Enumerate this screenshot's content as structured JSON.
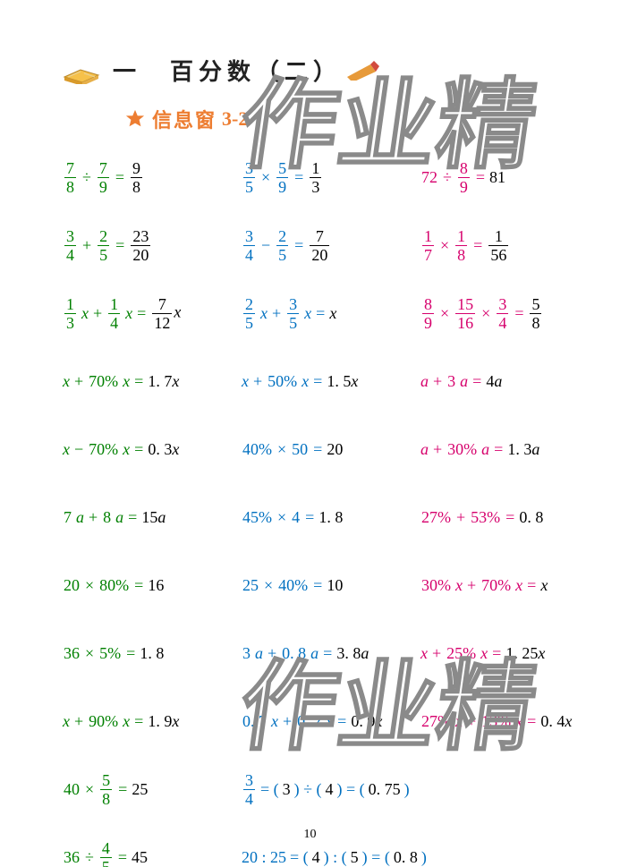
{
  "colors": {
    "green": "#008000",
    "blue": "#0070c0",
    "pink": "#d6006c",
    "orange": "#ed7d31",
    "answer": "#000000",
    "title": "#222222",
    "watermark_stroke": "#8a8a8a"
  },
  "title": "一　百分数（二）",
  "subtitle_label": "信息窗",
  "subtitle_num": "3-2",
  "page_number": "10",
  "watermark_text_top": "作业精",
  "watermark_text_bottom": "作业精",
  "rows": [
    [
      {
        "c": "green",
        "parts": [
          {
            "t": "frac",
            "n": "7",
            "d": "8"
          },
          {
            "t": "op",
            "v": "÷"
          },
          {
            "t": "frac",
            "n": "7",
            "d": "9"
          },
          {
            "t": "op",
            "v": "="
          }
        ],
        "ans_frac": {
          "n": "9",
          "d": "8"
        }
      },
      {
        "c": "blue",
        "parts": [
          {
            "t": "frac",
            "n": "3",
            "d": "5"
          },
          {
            "t": "op",
            "v": "×"
          },
          {
            "t": "frac",
            "n": "5",
            "d": "9"
          },
          {
            "t": "op",
            "v": "="
          }
        ],
        "ans_frac": {
          "n": "1",
          "d": "3"
        }
      },
      {
        "c": "pink",
        "parts": [
          {
            "t": "plain",
            "v": "72"
          },
          {
            "t": "op",
            "v": " ÷ "
          },
          {
            "t": "frac",
            "n": "8",
            "d": "9"
          },
          {
            "t": "op",
            "v": " = "
          }
        ],
        "ans": "81"
      }
    ],
    [
      {
        "c": "green",
        "parts": [
          {
            "t": "frac",
            "n": "3",
            "d": "4"
          },
          {
            "t": "op",
            "v": "+"
          },
          {
            "t": "frac",
            "n": "2",
            "d": "5"
          },
          {
            "t": "op",
            "v": "="
          }
        ],
        "ans_frac": {
          "n": "23",
          "d": "20"
        }
      },
      {
        "c": "blue",
        "parts": [
          {
            "t": "frac",
            "n": "3",
            "d": "4"
          },
          {
            "t": "op",
            "v": "−"
          },
          {
            "t": "frac",
            "n": "2",
            "d": "5"
          },
          {
            "t": "op",
            "v": "="
          }
        ],
        "ans_frac": {
          "n": "7",
          "d": "20"
        }
      },
      {
        "c": "pink",
        "parts": [
          {
            "t": "frac",
            "n": "1",
            "d": "7"
          },
          {
            "t": "op",
            "v": "×"
          },
          {
            "t": "frac",
            "n": "1",
            "d": "8"
          },
          {
            "t": "op",
            "v": "="
          }
        ],
        "ans_frac": {
          "n": "1",
          "d": "56"
        }
      }
    ],
    [
      {
        "c": "green",
        "parts": [
          {
            "t": "frac",
            "n": "1",
            "d": "3"
          },
          {
            "t": "ital",
            "v": "x"
          },
          {
            "t": "op",
            "v": " + "
          },
          {
            "t": "frac",
            "n": "1",
            "d": "4"
          },
          {
            "t": "ital",
            "v": "x"
          },
          {
            "t": "op",
            "v": " = "
          }
        ],
        "ans_parts": [
          {
            "t": "frac",
            "n": "7",
            "d": "12"
          },
          {
            "t": "ital",
            "v": "x"
          }
        ]
      },
      {
        "c": "blue",
        "parts": [
          {
            "t": "frac",
            "n": "2",
            "d": "5"
          },
          {
            "t": "ital",
            "v": "x"
          },
          {
            "t": "op",
            "v": " + "
          },
          {
            "t": "frac",
            "n": "3",
            "d": "5"
          },
          {
            "t": "ital",
            "v": "x"
          },
          {
            "t": "op",
            "v": " = "
          }
        ],
        "ans_parts": [
          {
            "t": "ital",
            "v": "x"
          }
        ]
      },
      {
        "c": "pink",
        "parts": [
          {
            "t": "frac",
            "n": "8",
            "d": "9"
          },
          {
            "t": "op",
            "v": "×"
          },
          {
            "t": "frac",
            "n": "15",
            "d": "16"
          },
          {
            "t": "op",
            "v": "×"
          },
          {
            "t": "frac",
            "n": "3",
            "d": "4"
          },
          {
            "t": "op",
            "v": "="
          }
        ],
        "ans_frac": {
          "n": "5",
          "d": "8"
        }
      }
    ],
    [
      {
        "c": "green",
        "parts": [
          {
            "t": "ital",
            "v": "x"
          },
          {
            "t": "op",
            "v": " + "
          },
          {
            "t": "plain",
            "v": "70%"
          },
          {
            "t": "ital",
            "v": " x"
          },
          {
            "t": "op",
            "v": " = "
          }
        ],
        "ans_parts": [
          {
            "t": "plain",
            "v": "1. 7"
          },
          {
            "t": "ital",
            "v": "x"
          }
        ]
      },
      {
        "c": "blue",
        "parts": [
          {
            "t": "ital",
            "v": "x"
          },
          {
            "t": "op",
            "v": " + "
          },
          {
            "t": "plain",
            "v": "50%"
          },
          {
            "t": "ital",
            "v": " x"
          },
          {
            "t": "op",
            "v": " = "
          }
        ],
        "ans_parts": [
          {
            "t": "plain",
            "v": "1. 5"
          },
          {
            "t": "ital",
            "v": "x"
          }
        ]
      },
      {
        "c": "pink",
        "parts": [
          {
            "t": "ital",
            "v": "a"
          },
          {
            "t": "op",
            "v": " + "
          },
          {
            "t": "plain",
            "v": "3"
          },
          {
            "t": "ital",
            "v": "a"
          },
          {
            "t": "op",
            "v": " = "
          }
        ],
        "ans_parts": [
          {
            "t": "plain",
            "v": "4"
          },
          {
            "t": "ital",
            "v": "a"
          }
        ]
      }
    ],
    [
      {
        "c": "green",
        "parts": [
          {
            "t": "ital",
            "v": "x"
          },
          {
            "t": "op",
            "v": " − "
          },
          {
            "t": "plain",
            "v": "70%"
          },
          {
            "t": "ital",
            "v": " x"
          },
          {
            "t": "op",
            "v": " = "
          }
        ],
        "ans_parts": [
          {
            "t": "plain",
            "v": "0. 3"
          },
          {
            "t": "ital",
            "v": "x"
          }
        ]
      },
      {
        "c": "blue",
        "parts": [
          {
            "t": "plain",
            "v": "40%"
          },
          {
            "t": "op",
            "v": " × "
          },
          {
            "t": "plain",
            "v": "50"
          },
          {
            "t": "op",
            "v": " = "
          }
        ],
        "ans": "20"
      },
      {
        "c": "pink",
        "parts": [
          {
            "t": "ital",
            "v": "a"
          },
          {
            "t": "op",
            "v": " + "
          },
          {
            "t": "plain",
            "v": "30%"
          },
          {
            "t": "ital",
            "v": " a"
          },
          {
            "t": "op",
            "v": " = "
          }
        ],
        "ans_parts": [
          {
            "t": "plain",
            "v": "1. 3"
          },
          {
            "t": "ital",
            "v": "a"
          }
        ]
      }
    ],
    [
      {
        "c": "green",
        "parts": [
          {
            "t": "plain",
            "v": "7"
          },
          {
            "t": "ital",
            "v": "a"
          },
          {
            "t": "op",
            "v": " + "
          },
          {
            "t": "plain",
            "v": "8"
          },
          {
            "t": "ital",
            "v": "a"
          },
          {
            "t": "op",
            "v": " = "
          }
        ],
        "ans_parts": [
          {
            "t": "plain",
            "v": "15"
          },
          {
            "t": "ital",
            "v": "a"
          }
        ]
      },
      {
        "c": "blue",
        "parts": [
          {
            "t": "plain",
            "v": "45%"
          },
          {
            "t": "op",
            "v": " × "
          },
          {
            "t": "plain",
            "v": "4"
          },
          {
            "t": "op",
            "v": " = "
          }
        ],
        "ans": "1. 8"
      },
      {
        "c": "pink",
        "parts": [
          {
            "t": "plain",
            "v": "27%"
          },
          {
            "t": "op",
            "v": " + "
          },
          {
            "t": "plain",
            "v": "53%"
          },
          {
            "t": "op",
            "v": " = "
          }
        ],
        "ans": "0. 8"
      }
    ],
    [
      {
        "c": "green",
        "parts": [
          {
            "t": "plain",
            "v": "20"
          },
          {
            "t": "op",
            "v": " × "
          },
          {
            "t": "plain",
            "v": "80%"
          },
          {
            "t": "op",
            "v": " = "
          }
        ],
        "ans": "16"
      },
      {
        "c": "blue",
        "parts": [
          {
            "t": "plain",
            "v": "25"
          },
          {
            "t": "op",
            "v": " × "
          },
          {
            "t": "plain",
            "v": "40%"
          },
          {
            "t": "op",
            "v": " = "
          }
        ],
        "ans": "10"
      },
      {
        "c": "pink",
        "parts": [
          {
            "t": "plain",
            "v": "30%"
          },
          {
            "t": "ital",
            "v": " x"
          },
          {
            "t": "op",
            "v": " + "
          },
          {
            "t": "plain",
            "v": "70%"
          },
          {
            "t": "ital",
            "v": " x"
          },
          {
            "t": "op",
            "v": " = "
          }
        ],
        "ans_parts": [
          {
            "t": "ital",
            "v": "x"
          }
        ]
      }
    ],
    [
      {
        "c": "green",
        "parts": [
          {
            "t": "plain",
            "v": "36"
          },
          {
            "t": "op",
            "v": " × "
          },
          {
            "t": "plain",
            "v": "5%"
          },
          {
            "t": "op",
            "v": " = "
          }
        ],
        "ans": "1. 8"
      },
      {
        "c": "blue",
        "parts": [
          {
            "t": "plain",
            "v": "3"
          },
          {
            "t": "ital",
            "v": "a"
          },
          {
            "t": "op",
            "v": " + "
          },
          {
            "t": "plain",
            "v": "0. 8"
          },
          {
            "t": "ital",
            "v": "a"
          },
          {
            "t": "op",
            "v": " = "
          }
        ],
        "ans_parts": [
          {
            "t": "plain",
            "v": "3. 8"
          },
          {
            "t": "ital",
            "v": "a"
          }
        ]
      },
      {
        "c": "pink",
        "parts": [
          {
            "t": "ital",
            "v": "x"
          },
          {
            "t": "op",
            "v": " + "
          },
          {
            "t": "plain",
            "v": "25%"
          },
          {
            "t": "ital",
            "v": " x"
          },
          {
            "t": "op",
            "v": " = "
          }
        ],
        "ans_parts": [
          {
            "t": "plain",
            "v": "1. 25"
          },
          {
            "t": "ital",
            "v": "x"
          }
        ]
      }
    ],
    [
      {
        "c": "green",
        "parts": [
          {
            "t": "ital",
            "v": "x"
          },
          {
            "t": "op",
            "v": " + "
          },
          {
            "t": "plain",
            "v": "90%"
          },
          {
            "t": "ital",
            "v": " x"
          },
          {
            "t": "op",
            "v": " = "
          }
        ],
        "ans_parts": [
          {
            "t": "plain",
            "v": "1. 9"
          },
          {
            "t": "ital",
            "v": "x"
          }
        ]
      },
      {
        "c": "blue",
        "parts": [
          {
            "t": "plain",
            "v": "0. 7"
          },
          {
            "t": "ital",
            "v": "x"
          },
          {
            "t": "op",
            "v": " + "
          },
          {
            "t": "plain",
            "v": "0. 2"
          },
          {
            "t": "ital",
            "v": "x"
          },
          {
            "t": "op",
            "v": " = "
          }
        ],
        "ans_parts": [
          {
            "t": "plain",
            "v": "0. 9"
          },
          {
            "t": "ital",
            "v": "x"
          }
        ]
      },
      {
        "c": "pink",
        "parts": [
          {
            "t": "plain",
            "v": "27%"
          },
          {
            "t": "ital",
            "v": " x"
          },
          {
            "t": "op",
            "v": " + "
          },
          {
            "t": "plain",
            "v": "13%"
          },
          {
            "t": "ital",
            "v": " x"
          },
          {
            "t": "op",
            "v": " = "
          }
        ],
        "ans_parts": [
          {
            "t": "plain",
            "v": "0. 4"
          },
          {
            "t": "ital",
            "v": "x"
          }
        ]
      }
    ]
  ],
  "special1": {
    "left": {
      "c": "green",
      "parts": [
        {
          "t": "plain",
          "v": "40"
        },
        {
          "t": "op",
          "v": " × "
        },
        {
          "t": "frac",
          "n": "5",
          "d": "8"
        },
        {
          "t": "op",
          "v": " = "
        }
      ],
      "ans": "25"
    },
    "right": {
      "c": "blue",
      "lead_frac": {
        "n": "3",
        "d": "4"
      },
      "segs": [
        {
          "pre": " = ( ",
          "ans": "3",
          "post": " ) ÷ ( "
        },
        {
          "ans": "4",
          "post": " ) = ( "
        },
        {
          "ans": "0. 75",
          "post": " )"
        }
      ]
    }
  },
  "special2": {
    "left": {
      "c": "green",
      "parts": [
        {
          "t": "plain",
          "v": "36"
        },
        {
          "t": "op",
          "v": " ÷ "
        },
        {
          "t": "frac",
          "n": "4",
          "d": "5"
        },
        {
          "t": "op",
          "v": " = "
        }
      ],
      "ans": "45"
    },
    "right": {
      "c": "blue",
      "lead": "20 : 25",
      "segs": [
        {
          "pre": " = ( ",
          "ans": "4",
          "post": " ) : ( "
        },
        {
          "ans": "5",
          "post": " ) = ( "
        },
        {
          "ans": "0. 8",
          "post": " )"
        }
      ]
    }
  }
}
